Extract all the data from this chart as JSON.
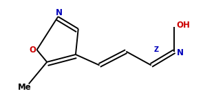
{
  "bg_color": "#ffffff",
  "bond_color": "#000000",
  "N_color": "#0000bb",
  "O_color": "#cc0000",
  "label_N": "N",
  "label_O": "O",
  "label_OH": "OH",
  "label_Me": "Me",
  "label_Z": "Z",
  "figsize": [
    2.95,
    1.55
  ],
  "dpi": 100,
  "xlim": [
    0,
    10.0
  ],
  "ylim": [
    0,
    5.2
  ]
}
